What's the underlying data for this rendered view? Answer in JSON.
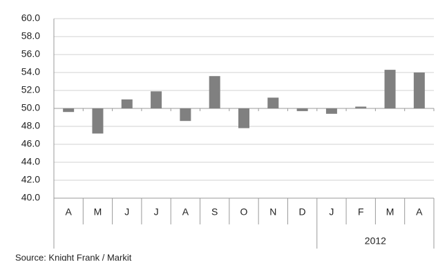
{
  "chart_data": {
    "type": "bar",
    "categories": [
      "A",
      "M",
      "J",
      "J",
      "A",
      "S",
      "O",
      "N",
      "D",
      "J",
      "F",
      "M",
      "A"
    ],
    "groups": [
      null,
      null,
      null,
      null,
      null,
      null,
      null,
      null,
      null,
      "2012",
      "2012",
      "2012",
      "2012"
    ],
    "values": [
      49.6,
      47.2,
      51.0,
      51.9,
      48.6,
      53.6,
      47.8,
      51.2,
      49.7,
      49.4,
      50.2,
      54.3,
      54.0
    ],
    "baseline": 50,
    "color": "#808080",
    "ylim": [
      40,
      60
    ],
    "yticks": [
      {
        "value": 40,
        "label": "40.0"
      },
      {
        "value": 42,
        "label": "42.0"
      },
      {
        "value": 44,
        "label": "44.0"
      },
      {
        "value": 46,
        "label": "46.0"
      },
      {
        "value": 48,
        "label": "48.0"
      },
      {
        "value": 50,
        "label": "50.0"
      },
      {
        "value": 52,
        "label": "52.0"
      },
      {
        "value": 54,
        "label": "54.0"
      },
      {
        "value": 56,
        "label": "56.0"
      },
      {
        "value": 58,
        "label": "58.0"
      },
      {
        "value": 60,
        "label": "60.0"
      }
    ],
    "grid": true,
    "source": "Source: Knight Frank / Markit"
  }
}
